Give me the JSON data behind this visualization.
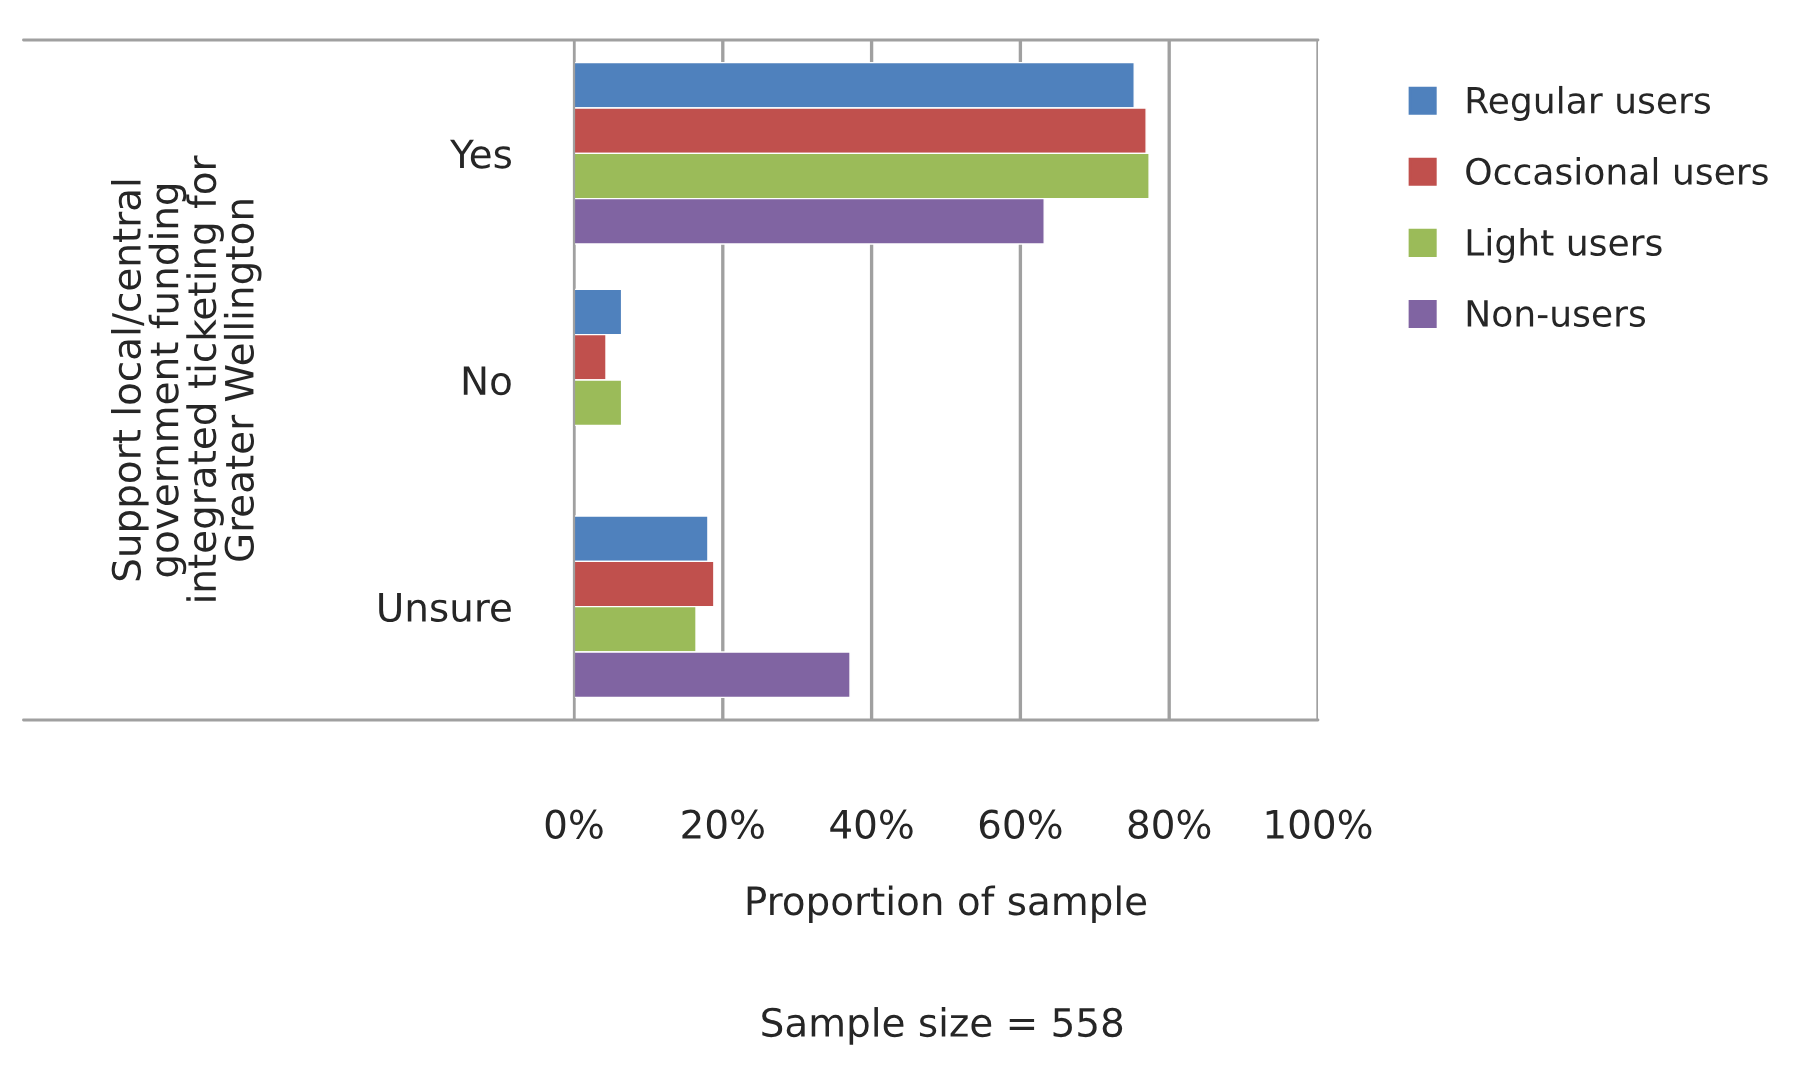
{
  "chart_data": {
    "type": "bar",
    "orientation": "horizontal",
    "categories": [
      "Yes",
      "No",
      "Unsure"
    ],
    "series": [
      {
        "name": "Regular users",
        "color": "#4f81bd",
        "values": [
          75.3,
          6.4,
          18.0
        ]
      },
      {
        "name": "Occasional users",
        "color": "#c0504d",
        "values": [
          76.9,
          4.3,
          18.8
        ]
      },
      {
        "name": "Light users",
        "color": "#9bbb59",
        "values": [
          77.3,
          6.4,
          16.4
        ]
      },
      {
        "name": "Non-users",
        "color": "#8064a2",
        "values": [
          63.2,
          null,
          37.1
        ]
      }
    ],
    "xlabel": "Proportion of sample",
    "ylabel": "Support local/central government funding integrated ticketing for Greater Wellington",
    "xlim": [
      0,
      100
    ],
    "xticks": [
      {
        "value": 0,
        "label": "0%"
      },
      {
        "value": 20,
        "label": "20%"
      },
      {
        "value": 40,
        "label": "40%"
      },
      {
        "value": 60,
        "label": "60%"
      },
      {
        "value": 80,
        "label": "80%"
      },
      {
        "value": 100,
        "label": "100%"
      }
    ],
    "grid": "x",
    "legend": "right",
    "annotations": [
      "Sample size = 558"
    ]
  }
}
